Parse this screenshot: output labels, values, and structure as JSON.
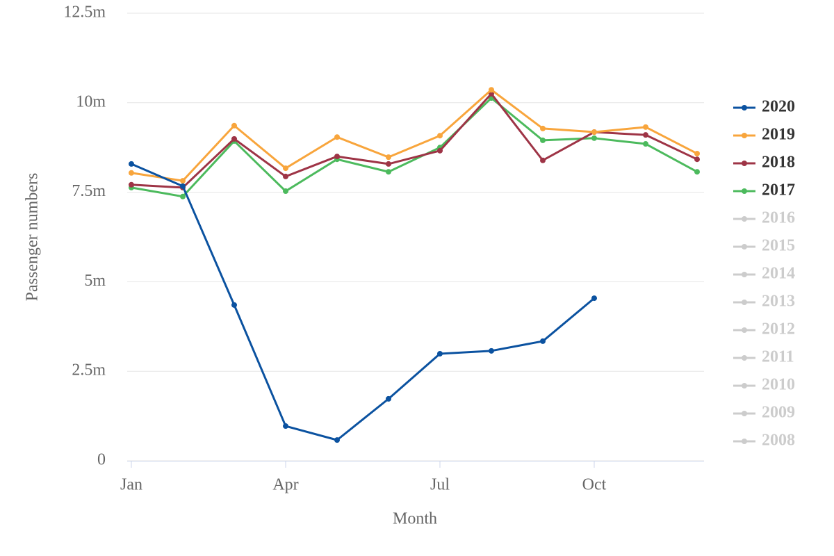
{
  "chart_data": {
    "type": "line",
    "x_label": "Month",
    "y_label": "Passenger numbers",
    "categories": [
      "Jan",
      null,
      null,
      "Apr",
      null,
      null,
      "Jul",
      null,
      null,
      "Oct",
      null,
      null
    ],
    "ylim": [
      0,
      12500000
    ],
    "yticks": [
      0,
      {
        "value": 2500000,
        "label": "2.5m"
      },
      {
        "value": 5000000,
        "label": "5m"
      },
      {
        "value": 7500000,
        "label": "7.5m"
      },
      {
        "value": 10000000,
        "label": "10m"
      },
      {
        "value": 12500000,
        "label": "12.5m"
      }
    ],
    "grid": true,
    "legend": "right",
    "series": [
      {
        "name": "2020",
        "color": "#0b52a0",
        "values": [
          8290000,
          7670000,
          4350000,
          970000,
          580000,
          1730000,
          2990000,
          3070000,
          3340000,
          4540000,
          null,
          null
        ]
      },
      {
        "name": "2019",
        "color": "#f8a53c",
        "values": [
          8040000,
          7820000,
          9360000,
          8170000,
          9040000,
          8480000,
          9080000,
          10360000,
          9280000,
          9180000,
          9320000,
          8580000
        ]
      },
      {
        "name": "2018",
        "color": "#9e3446",
        "values": [
          7710000,
          7630000,
          8990000,
          7940000,
          8500000,
          8290000,
          8660000,
          10250000,
          8390000,
          9180000,
          9100000,
          8420000
        ]
      },
      {
        "name": "2017",
        "color": "#4cba5d",
        "values": [
          7630000,
          7380000,
          8930000,
          7530000,
          8420000,
          8070000,
          8750000,
          10130000,
          8950000,
          9010000,
          8850000,
          8070000
        ]
      }
    ],
    "hidden_series": [
      "2016",
      "2015",
      "2014",
      "2013",
      "2012",
      "2011",
      "2010",
      "2009",
      "2008"
    ],
    "hidden_color": "#cccccc"
  }
}
